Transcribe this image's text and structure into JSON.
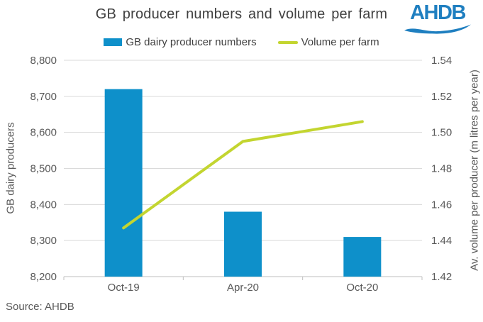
{
  "title": "GB producer numbers and volume per farm",
  "logo": {
    "text": "AHDB",
    "color": "#1f7fc0"
  },
  "legend": [
    {
      "label": "GB dairy producer numbers",
      "marker": "bar-swatch",
      "color": "#0e90ca"
    },
    {
      "label": "Volume per farm",
      "marker": "line-swatch",
      "color": "#c3d530"
    }
  ],
  "source": "Source: AHDB",
  "colors": {
    "bar": "#0e90ca",
    "line": "#c3d530",
    "grid": "#d9d9d9",
    "axis": "#bfbfbf",
    "tick_text": "#595959",
    "title_text": "#404040",
    "logo_blue": "#1f7fc0"
  },
  "chart_data": {
    "type": "bar+line",
    "categories": [
      "Oct-19",
      "Apr-20",
      "Oct-20"
    ],
    "series": [
      {
        "name": "GB dairy producer numbers",
        "type": "bar",
        "axis": "left",
        "color": "#0e90ca",
        "values": [
          8720,
          8380,
          8310
        ]
      },
      {
        "name": "Volume per farm",
        "type": "line",
        "axis": "right",
        "color": "#c3d530",
        "values": [
          1.447,
          1.495,
          1.506
        ]
      }
    ],
    "left_axis": {
      "label": "GB dairy producers",
      "min": 8200,
      "max": 8800,
      "step": 100,
      "ticks": [
        "8,200",
        "8,300",
        "8,400",
        "8,500",
        "8,600",
        "8,700",
        "8,800"
      ]
    },
    "right_axis": {
      "label": "Av. volume per producer (m litres per year)",
      "min": 1.42,
      "max": 1.54,
      "step": 0.02,
      "ticks": [
        "1.42",
        "1.44",
        "1.46",
        "1.48",
        "1.50",
        "1.52",
        "1.54"
      ]
    },
    "grid": true,
    "legend_position": "top"
  }
}
